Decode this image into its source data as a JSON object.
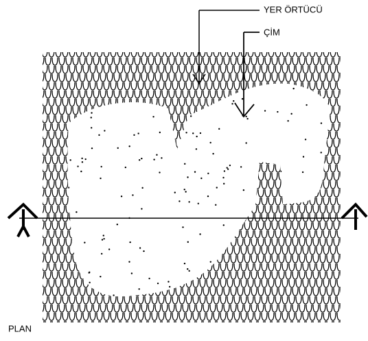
{
  "labels": {
    "ground_cover": "YER ÖRTÜCÜ",
    "lawn": "ÇİM"
  },
  "caption": "PLAN"
}
